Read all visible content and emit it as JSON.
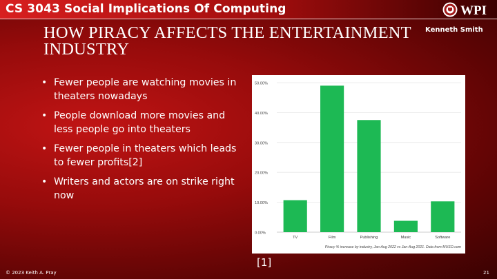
{
  "header": {
    "course_title": "CS 3043 Social Implications Of Computing",
    "logo_text": "WPI"
  },
  "slide": {
    "title": "HOW PIRACY AFFECTS THE ENTERTAINMENT INDUSTRY",
    "author": "Kenneth Smith",
    "bullets": [
      "Fewer people are watching movies in theaters nowadays",
      "People download more movies and less people go into theaters",
      "Fewer people in theaters which leads to fewer profits[2]",
      "Writers and actors are on strike right now"
    ],
    "chart_reference": "[1]"
  },
  "chart_data": {
    "type": "bar",
    "categories": [
      "TV",
      "Film",
      "Publishing",
      "Music",
      "Software"
    ],
    "values": [
      10.7,
      49.0,
      37.5,
      3.8,
      10.3
    ],
    "ylim": [
      0,
      50
    ],
    "yticks": [
      "0.00%",
      "10.00%",
      "20.00%",
      "30.00%",
      "40.00%",
      "50.00%"
    ],
    "tick_values": [
      0,
      10,
      20,
      30,
      40,
      50
    ],
    "caption": "Piracy % increase by industry, Jan-Aug 2022 vs Jan-Aug 2021. Data from MUSO.com",
    "bar_color": "#1db954",
    "grid": true
  },
  "footer": {
    "copyright": "© 2023 Keith A. Pray",
    "page_number": "21"
  },
  "colors": {
    "background": "#960b0b",
    "topbar": "#d81f1f",
    "text": "#ffffff"
  }
}
